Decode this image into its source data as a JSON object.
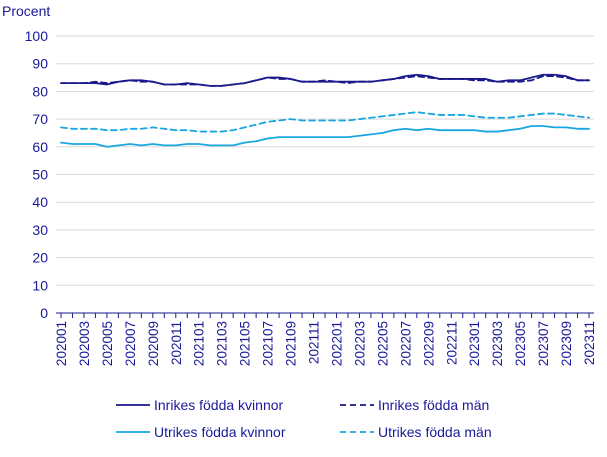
{
  "chart_data": {
    "type": "line",
    "ylabel": "Procent",
    "ylim": [
      0,
      100
    ],
    "yticks": [
      0,
      10,
      20,
      30,
      40,
      50,
      60,
      70,
      80,
      90,
      100
    ],
    "x": [
      "202001",
      "202002",
      "202003",
      "202004",
      "202005",
      "202006",
      "202007",
      "202008",
      "202009",
      "202010",
      "202011",
      "202012",
      "202101",
      "202102",
      "202103",
      "202104",
      "202105",
      "202106",
      "202107",
      "202108",
      "202109",
      "202110",
      "202111",
      "202112",
      "202201",
      "202202",
      "202203",
      "202204",
      "202205",
      "202206",
      "202207",
      "202208",
      "202209",
      "202210",
      "202211",
      "202212",
      "202301",
      "202302",
      "202303",
      "202304",
      "202305",
      "202306",
      "202307",
      "202308",
      "202309",
      "202310",
      "202311"
    ],
    "xtick_labels": [
      "202001",
      "202003",
      "202005",
      "202007",
      "202009",
      "202011",
      "202101",
      "202103",
      "202105",
      "202107",
      "202109",
      "202111",
      "202201",
      "202203",
      "202205",
      "202207",
      "202209",
      "202211",
      "202301",
      "202303",
      "202305",
      "202307",
      "202309",
      "202311"
    ],
    "grid": "horizontal",
    "legend_position": "bottom",
    "series": [
      {
        "name": "Inrikes födda kvinnor",
        "color": "#1a1a8c",
        "dash": "solid",
        "values": [
          83.0,
          83.0,
          83.0,
          83.0,
          82.5,
          83.5,
          84.0,
          84.0,
          83.5,
          82.5,
          82.5,
          83.0,
          82.5,
          82.0,
          82.0,
          82.5,
          83.0,
          84.0,
          85.0,
          85.0,
          84.5,
          83.5,
          83.5,
          83.5,
          83.5,
          83.5,
          83.5,
          83.5,
          84.0,
          84.5,
          85.5,
          86.0,
          85.5,
          84.5,
          84.5,
          84.5,
          84.5,
          84.5,
          83.5,
          84.0,
          84.0,
          85.0,
          86.0,
          86.0,
          85.5,
          84.0,
          84.0
        ]
      },
      {
        "name": "Inrikes födda män",
        "color": "#1a1a8c",
        "dash": "dashed",
        "values": [
          83.0,
          83.0,
          83.0,
          83.5,
          83.0,
          83.5,
          84.0,
          83.5,
          83.5,
          82.5,
          82.5,
          82.5,
          82.5,
          82.0,
          82.0,
          82.5,
          83.0,
          84.0,
          85.0,
          84.5,
          84.5,
          83.5,
          83.5,
          84.0,
          83.5,
          83.0,
          83.5,
          83.5,
          84.0,
          84.5,
          85.0,
          85.5,
          85.0,
          84.5,
          84.5,
          84.5,
          84.0,
          84.0,
          83.5,
          83.5,
          83.5,
          84.0,
          85.5,
          85.5,
          85.0,
          84.0,
          84.0
        ]
      },
      {
        "name": "Utrikes födda kvinnor",
        "color": "#1aa6e0",
        "dash": "solid",
        "values": [
          61.5,
          61.0,
          61.0,
          61.0,
          60.0,
          60.5,
          61.0,
          60.5,
          61.0,
          60.5,
          60.5,
          61.0,
          61.0,
          60.5,
          60.5,
          60.5,
          61.5,
          62.0,
          63.0,
          63.5,
          63.5,
          63.5,
          63.5,
          63.5,
          63.5,
          63.5,
          64.0,
          64.5,
          65.0,
          66.0,
          66.5,
          66.0,
          66.5,
          66.0,
          66.0,
          66.0,
          66.0,
          65.5,
          65.5,
          66.0,
          66.5,
          67.5,
          67.5,
          67.0,
          67.0,
          66.5,
          66.5
        ]
      },
      {
        "name": "Utrikes födda män",
        "color": "#1aa6e0",
        "dash": "dashed",
        "values": [
          67.0,
          66.5,
          66.5,
          66.5,
          66.0,
          66.0,
          66.5,
          66.5,
          67.0,
          66.5,
          66.0,
          66.0,
          65.5,
          65.5,
          65.5,
          66.0,
          67.0,
          68.0,
          69.0,
          69.5,
          70.0,
          69.5,
          69.5,
          69.5,
          69.5,
          69.5,
          70.0,
          70.5,
          71.0,
          71.5,
          72.0,
          72.5,
          72.0,
          71.5,
          71.5,
          71.5,
          71.0,
          70.5,
          70.5,
          70.5,
          71.0,
          71.5,
          72.0,
          72.0,
          71.5,
          71.0,
          70.5
        ]
      }
    ]
  }
}
